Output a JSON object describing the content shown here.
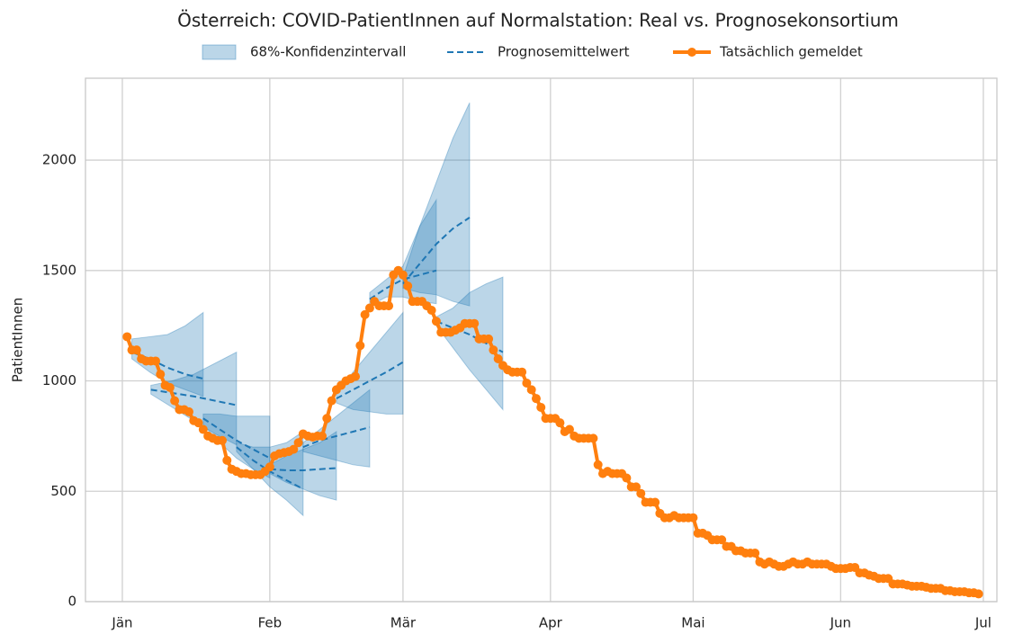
{
  "chart_data": {
    "type": "forecast",
    "title": "Österreich: COVID-PatientInnen auf Normalstation: Real vs. Prognosekonsortium",
    "ylabel": "PatientInnen",
    "xlim": [
      -7.75,
      183.85
    ],
    "ylim": [
      0,
      2371
    ],
    "xticks": [
      {
        "value": 0,
        "label": "Jän"
      },
      {
        "value": 31,
        "label": "Feb"
      },
      {
        "value": 59,
        "label": "Mär"
      },
      {
        "value": 90,
        "label": "Apr"
      },
      {
        "value": 120,
        "label": "Mai"
      },
      {
        "value": 151,
        "label": "Jun"
      },
      {
        "value": 181,
        "label": "Jul"
      }
    ],
    "yticks": [
      0,
      500,
      1000,
      1500,
      2000
    ],
    "grid": true,
    "band": {
      "name": "68%-Konfidenzintervall",
      "color": "#1f77b4"
    },
    "mean": {
      "name": "Prognosemittelwert",
      "color": "#1f77b4"
    },
    "forecasts": [
      {
        "x": [
          2,
          5.75,
          9.5,
          13.25,
          17
        ],
        "mean": [
          1130,
          1100,
          1060,
          1030,
          1010
        ],
        "lower": [
          1100,
          1040,
          990,
          960,
          930
        ],
        "upper": [
          1190,
          1200,
          1210,
          1250,
          1310
        ]
      },
      {
        "x": [
          6,
          10.5,
          15,
          19.5,
          24
        ],
        "mean": [
          960,
          945,
          930,
          910,
          890
        ],
        "lower": [
          940,
          880,
          820,
          760,
          710
        ],
        "upper": [
          980,
          1000,
          1030,
          1080,
          1130
        ]
      },
      {
        "x": [
          17,
          20.5,
          24,
          27.5,
          31
        ],
        "mean": [
          830,
          780,
          730,
          690,
          650
        ],
        "lower": [
          800,
          720,
          650,
          600,
          560
        ],
        "upper": [
          850,
          850,
          840,
          840,
          840
        ]
      },
      {
        "x": [
          24,
          27.5,
          31,
          34.5,
          38
        ],
        "mean": [
          700,
          640,
          590,
          550,
          510
        ],
        "lower": [
          680,
          600,
          520,
          460,
          390
        ],
        "upper": [
          720,
          700,
          700,
          720,
          770
        ]
      },
      {
        "x": [
          31,
          34.5,
          38,
          41.5,
          45
        ],
        "mean": [
          600,
          595,
          595,
          600,
          605
        ],
        "lower": [
          580,
          540,
          510,
          480,
          460
        ],
        "upper": [
          620,
          660,
          690,
          720,
          770
        ]
      },
      {
        "x": [
          38,
          41.5,
          45,
          48.5,
          52
        ],
        "mean": [
          700,
          730,
          750,
          770,
          790
        ],
        "lower": [
          680,
          660,
          640,
          620,
          610
        ],
        "upper": [
          720,
          780,
          840,
          900,
          960
        ]
      },
      {
        "x": [
          45,
          48.5,
          52,
          55.5,
          59
        ],
        "mean": [
          920,
          960,
          1000,
          1040,
          1085
        ],
        "lower": [
          900,
          870,
          860,
          850,
          850
        ],
        "upper": [
          940,
          1040,
          1130,
          1220,
          1310
        ]
      },
      {
        "x": [
          52,
          55.5,
          59,
          62.5,
          66
        ],
        "mean": [
          1370,
          1420,
          1460,
          1480,
          1500
        ],
        "lower": [
          1340,
          1380,
          1380,
          1360,
          1350
        ],
        "upper": [
          1400,
          1460,
          1520,
          1700,
          1820
        ]
      },
      {
        "x": [
          59,
          62.5,
          66,
          69.5,
          73
        ],
        "mean": [
          1440,
          1530,
          1620,
          1690,
          1740
        ],
        "lower": [
          1420,
          1400,
          1390,
          1360,
          1340
        ],
        "upper": [
          1470,
          1700,
          1900,
          2100,
          2260
        ]
      },
      {
        "x": [
          66,
          69.5,
          73,
          76.5,
          80
        ],
        "mean": [
          1270,
          1240,
          1210,
          1170,
          1130
        ],
        "lower": [
          1250,
          1150,
          1050,
          960,
          870
        ],
        "upper": [
          1290,
          1330,
          1400,
          1440,
          1470
        ]
      }
    ],
    "actual": {
      "name": "Tatsächlich gemeldet",
      "color": "#ff7f0e",
      "x": [
        1,
        2,
        3,
        4,
        5,
        6,
        7,
        8,
        9,
        10,
        11,
        12,
        13,
        14,
        15,
        16,
        17,
        18,
        19,
        20,
        21,
        22,
        23,
        24,
        25,
        26,
        27,
        28,
        29,
        30,
        31,
        32,
        33,
        34,
        35,
        36,
        37,
        38,
        39,
        40,
        41,
        42,
        43,
        44,
        45,
        46,
        47,
        48,
        49,
        50,
        51,
        52,
        53,
        54,
        55,
        56,
        57,
        58,
        59,
        60,
        61,
        62,
        63,
        64,
        65,
        66,
        67,
        68,
        69,
        70,
        71,
        72,
        73,
        74,
        75,
        76,
        77,
        78,
        79,
        80,
        81,
        82,
        83,
        84,
        85,
        86,
        87,
        88,
        89,
        90,
        91,
        92,
        93,
        94,
        95,
        96,
        97,
        98,
        99,
        100,
        101,
        102,
        103,
        104,
        105,
        106,
        107,
        108,
        109,
        110,
        111,
        112,
        113,
        114,
        115,
        116,
        117,
        118,
        119,
        120,
        121,
        122,
        123,
        124,
        125,
        126,
        127,
        128,
        129,
        130,
        131,
        132,
        133,
        134,
        135,
        136,
        137,
        138,
        139,
        140,
        141,
        142,
        143,
        144,
        145,
        146,
        147,
        148,
        149,
        150,
        151,
        152,
        153,
        154,
        155,
        156,
        157,
        158,
        159,
        160,
        161,
        162,
        163,
        164,
        165,
        166,
        167,
        168,
        169,
        170,
        171,
        172,
        173,
        174,
        175,
        176,
        177,
        178,
        179,
        180
      ],
      "values": [
        1200,
        1140,
        1140,
        1100,
        1090,
        1090,
        1090,
        1030,
        980,
        970,
        910,
        870,
        870,
        860,
        820,
        810,
        780,
        750,
        740,
        730,
        730,
        640,
        600,
        590,
        580,
        580,
        575,
        575,
        575,
        590,
        610,
        660,
        670,
        675,
        680,
        690,
        720,
        760,
        750,
        745,
        750,
        750,
        830,
        910,
        960,
        980,
        1000,
        1010,
        1020,
        1160,
        1300,
        1330,
        1360,
        1340,
        1340,
        1340,
        1480,
        1500,
        1480,
        1430,
        1360,
        1360,
        1360,
        1340,
        1320,
        1270,
        1220,
        1220,
        1220,
        1230,
        1240,
        1260,
        1260,
        1260,
        1190,
        1190,
        1190,
        1140,
        1100,
        1070,
        1050,
        1040,
        1040,
        1040,
        990,
        960,
        920,
        880,
        830,
        830,
        830,
        810,
        770,
        780,
        750,
        740,
        740,
        740,
        740,
        620,
        580,
        590,
        580,
        580,
        580,
        560,
        520,
        520,
        490,
        450,
        450,
        450,
        400,
        380,
        380,
        390,
        380,
        380,
        380,
        380,
        310,
        310,
        300,
        280,
        280,
        280,
        250,
        250,
        230,
        230,
        220,
        220,
        220,
        180,
        170,
        180,
        170,
        160,
        160,
        170,
        180,
        170,
        170,
        180,
        170,
        170,
        170,
        170,
        160,
        150,
        150,
        150,
        155,
        155,
        130,
        130,
        120,
        115,
        105,
        105,
        105,
        80,
        80,
        80,
        75,
        70,
        70,
        70,
        65,
        60,
        60,
        60,
        50,
        50,
        45,
        45,
        45,
        40,
        40,
        35
      ]
    }
  }
}
